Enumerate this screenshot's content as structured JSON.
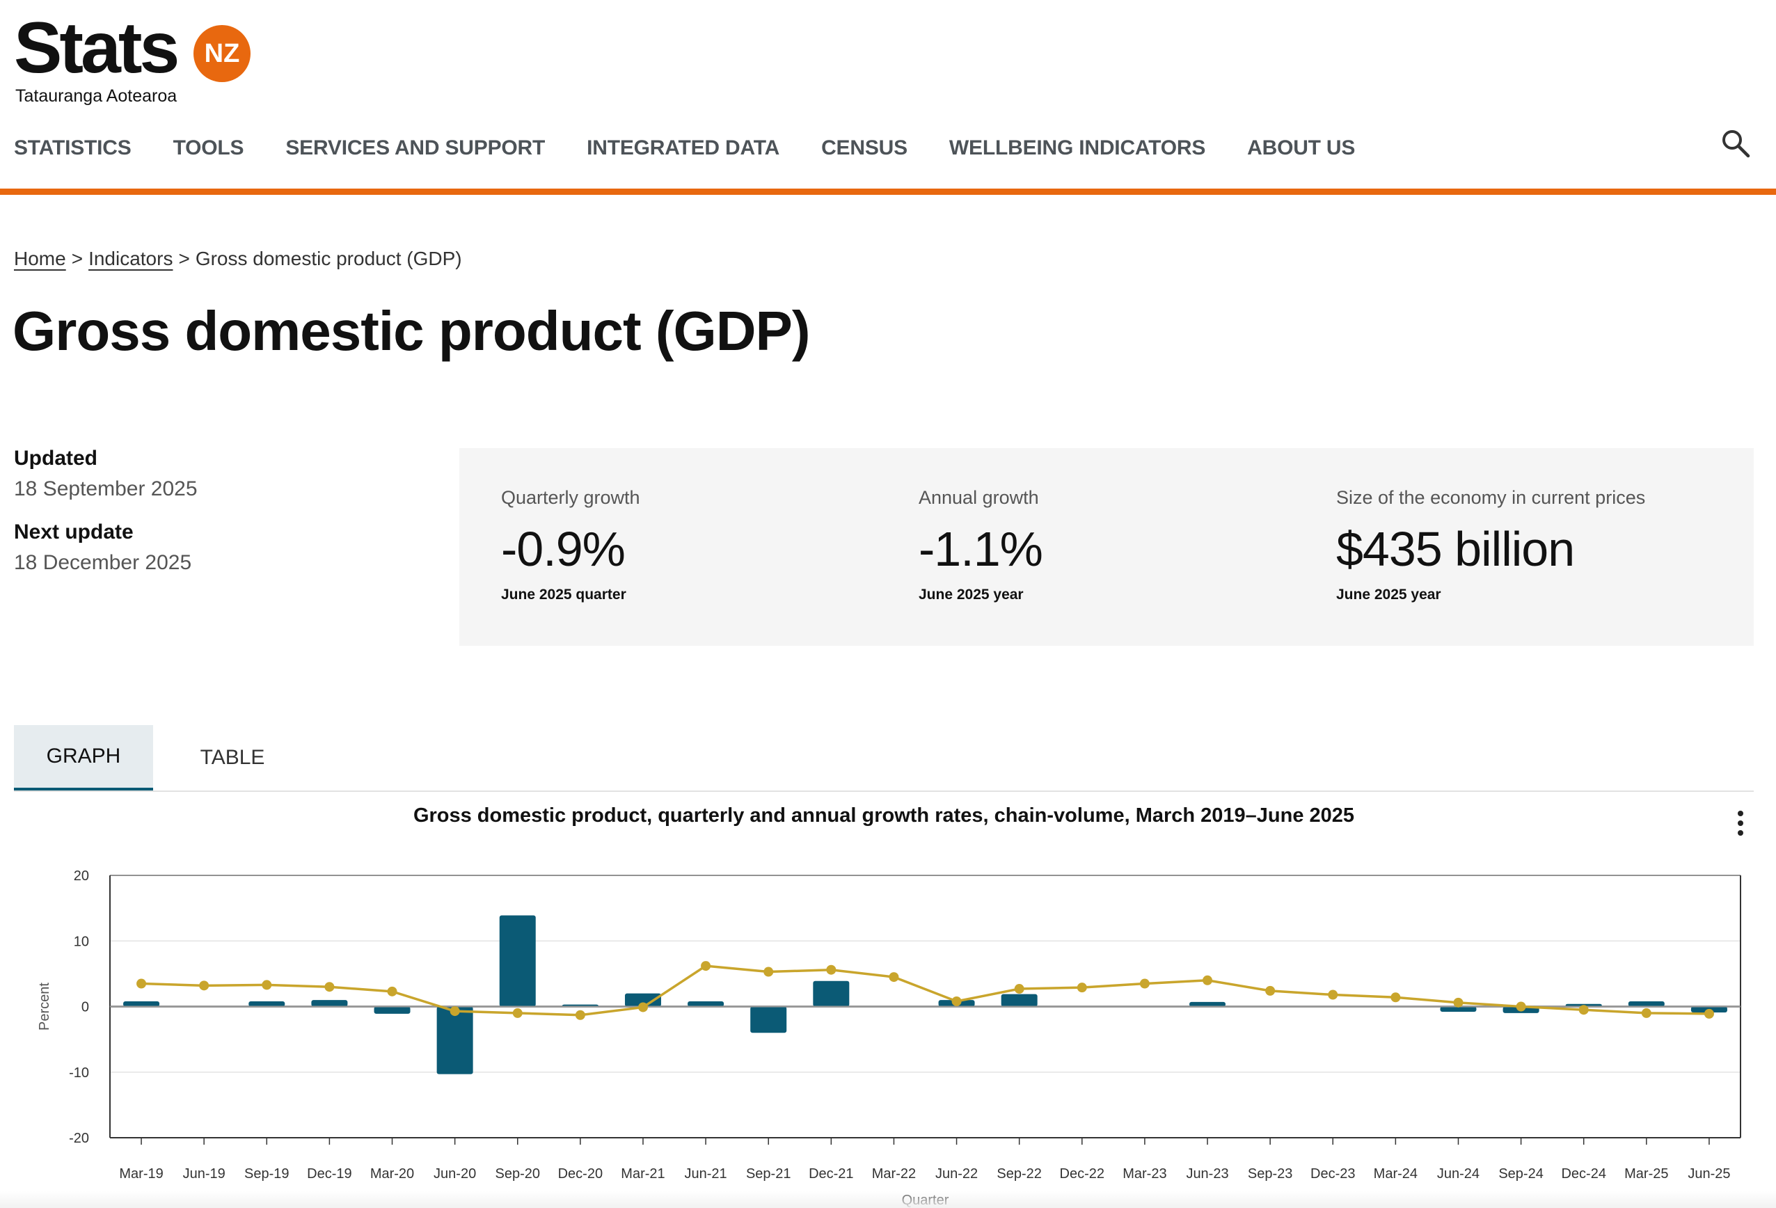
{
  "logo": {
    "word": "Stats",
    "badge": "NZ",
    "subtitle": "Tatauranga Aotearoa"
  },
  "nav": {
    "items": [
      {
        "label": "STATISTICS"
      },
      {
        "label": "TOOLS"
      },
      {
        "label": "SERVICES AND SUPPORT"
      },
      {
        "label": "INTEGRATED DATA"
      },
      {
        "label": "CENSUS"
      },
      {
        "label": "WELLBEING INDICATORS"
      },
      {
        "label": "ABOUT US"
      }
    ],
    "search_icon": "search-icon"
  },
  "breadcrumb": {
    "home": "Home",
    "indicators": "Indicators",
    "current": "Gross domestic product (GDP)",
    "separator": ">"
  },
  "page": {
    "title": "Gross domestic product (GDP)"
  },
  "meta": {
    "updated_label": "Updated",
    "updated_value": "18 September 2025",
    "next_label": "Next update",
    "next_value": "18 December 2025"
  },
  "stats": [
    {
      "label": "Quarterly growth",
      "value": "-0.9%",
      "sub": "June 2025 quarter"
    },
    {
      "label": "Annual growth",
      "value": "-1.1%",
      "sub": "June 2025 year"
    },
    {
      "label": "Size of the economy in current prices",
      "value": "$435 billion",
      "sub": "June 2025 year"
    }
  ],
  "tabs": {
    "graph": "GRAPH",
    "table": "TABLE",
    "active": "graph"
  },
  "colors": {
    "accent": "#e8680f",
    "bar": "#0b5a75",
    "line": "#c9a52c",
    "stat_bg": "#f5f5f5"
  },
  "chart_data": {
    "type": "bar+line",
    "title": "Gross domestic product, quarterly and annual growth rates, chain-volume, March 2019–June 2025",
    "ylabel": "Percent",
    "xlabel": "Quarter",
    "ylim": [
      -20,
      20
    ],
    "yticks": [
      20,
      10,
      0,
      -10,
      -20
    ],
    "categories": [
      "Mar-19",
      "Jun-19",
      "Sep-19",
      "Dec-19",
      "Mar-20",
      "Jun-20",
      "Sep-20",
      "Dec-20",
      "Mar-21",
      "Jun-21",
      "Sep-21",
      "Dec-21",
      "Mar-22",
      "Jun-22",
      "Sep-22",
      "Dec-22",
      "Mar-23",
      "Jun-23",
      "Sep-23",
      "Dec-23",
      "Mar-24",
      "Jun-24",
      "Sep-24",
      "Dec-24",
      "Mar-25",
      "Jun-25"
    ],
    "series": [
      {
        "name": "Quarterly growth",
        "kind": "bar",
        "values": [
          0.8,
          0.1,
          0.8,
          1.0,
          -1.1,
          -10.3,
          13.9,
          0.3,
          2.0,
          0.8,
          -4.0,
          3.9,
          0.1,
          1.0,
          1.9,
          0.0,
          0.0,
          0.7,
          0.0,
          0.0,
          0.0,
          -0.8,
          -1.0,
          0.4,
          0.8,
          -0.9
        ]
      },
      {
        "name": "Annual growth",
        "kind": "line",
        "values": [
          3.5,
          3.2,
          3.3,
          3.0,
          2.3,
          -0.7,
          -1.0,
          -1.3,
          -0.1,
          6.2,
          5.3,
          5.6,
          4.5,
          0.8,
          2.7,
          2.9,
          3.5,
          4.0,
          2.4,
          1.8,
          1.4,
          0.6,
          0.0,
          -0.5,
          -1.0,
          -1.1
        ]
      }
    ]
  }
}
